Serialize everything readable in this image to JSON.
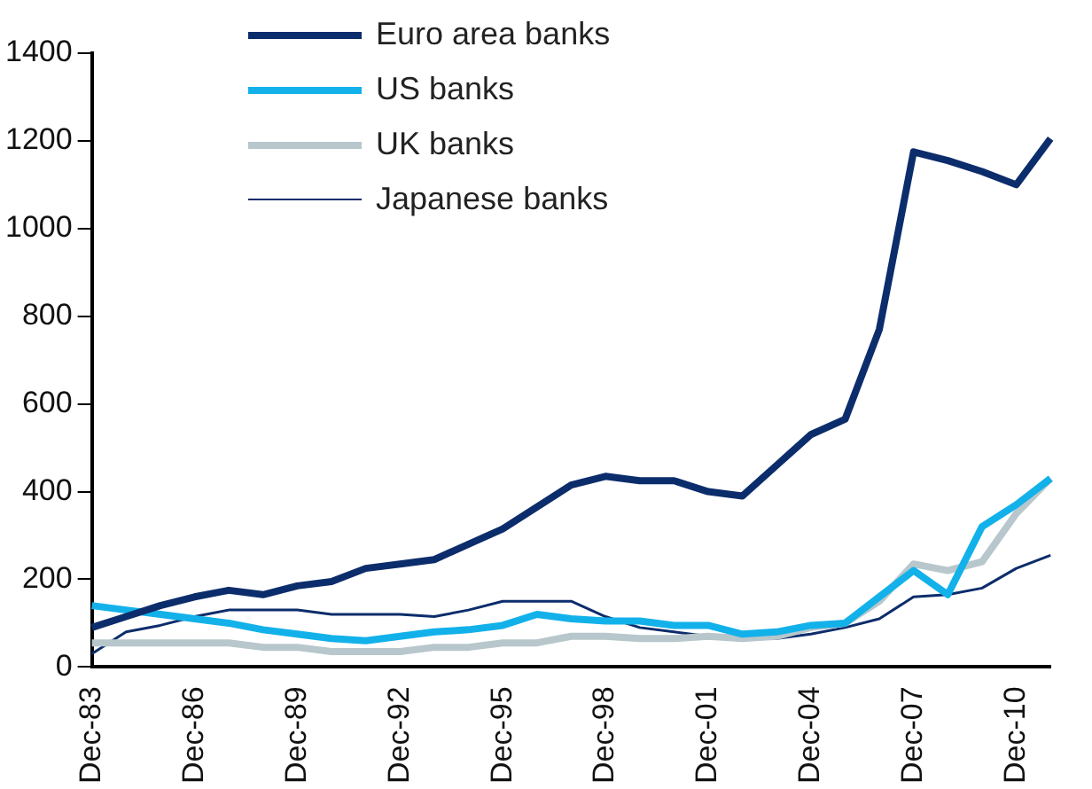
{
  "chart_data": {
    "type": "line",
    "categories": [
      "Dec-83",
      null,
      null,
      "Dec-86",
      null,
      null,
      "Dec-89",
      null,
      null,
      "Dec-92",
      null,
      null,
      "Dec-95",
      null,
      null,
      "Dec-98",
      null,
      null,
      "Dec-01",
      null,
      null,
      "Dec-04",
      null,
      null,
      "Dec-07",
      null,
      null,
      "Dec-10",
      null
    ],
    "series": [
      {
        "name": "Euro area banks",
        "color": "#0c2d6b",
        "values": [
          90,
          115,
          140,
          160,
          175,
          165,
          185,
          195,
          225,
          235,
          245,
          280,
          315,
          365,
          415,
          435,
          425,
          425,
          400,
          390,
          460,
          530,
          565,
          770,
          1175,
          1155,
          1130,
          1100,
          1205
        ]
      },
      {
        "name": "US banks",
        "color": "#13b1ea",
        "values": [
          140,
          130,
          120,
          110,
          100,
          85,
          75,
          65,
          60,
          70,
          80,
          85,
          95,
          120,
          110,
          105,
          105,
          95,
          95,
          75,
          80,
          95,
          100,
          160,
          220,
          165,
          320,
          370,
          430
        ]
      },
      {
        "name": "UK banks",
        "color": "#b7c7cc",
        "values": [
          55,
          55,
          55,
          55,
          55,
          45,
          45,
          35,
          35,
          35,
          45,
          45,
          55,
          55,
          70,
          70,
          65,
          65,
          70,
          65,
          70,
          90,
          100,
          150,
          235,
          220,
          240,
          350,
          430
        ]
      },
      {
        "name": "Japanese banks",
        "color": "#0c2d6b",
        "values": [
          30,
          80,
          95,
          115,
          130,
          130,
          130,
          120,
          120,
          120,
          115,
          130,
          150,
          150,
          150,
          115,
          90,
          80,
          70,
          65,
          65,
          75,
          90,
          110,
          160,
          165,
          180,
          225,
          255
        ]
      }
    ],
    "ylim": [
      0,
      1400
    ],
    "yticks": [
      0,
      200,
      400,
      600,
      800,
      1000,
      1200,
      1400
    ],
    "grid": false,
    "legend": "top left",
    "marker": "none",
    "line_style": "solid"
  }
}
